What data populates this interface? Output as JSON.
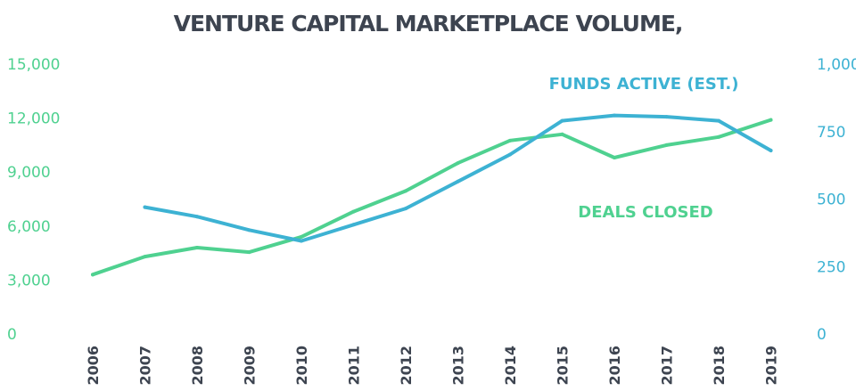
{
  "chart_data": {
    "type": "line",
    "title": "VENTURE CAPITAL MARKETPLACE VOLUME,",
    "x": [
      "2006",
      "2007",
      "2008",
      "2009",
      "2010",
      "2011",
      "2012",
      "2013",
      "2014",
      "2015",
      "2016",
      "2017",
      "2018",
      "2019"
    ],
    "y_left": {
      "ylim": [
        0,
        15000
      ],
      "ticks": [
        0,
        3000,
        6000,
        9000,
        12000,
        15000
      ],
      "tick_labels": [
        "0",
        "3,000",
        "6,000",
        "9,000",
        "12,000",
        "15,000"
      ]
    },
    "y_right": {
      "ylim": [
        0,
        1000
      ],
      "ticks": [
        0,
        250,
        500,
        750,
        1000
      ],
      "tick_labels": [
        "0",
        "250",
        "500",
        "750",
        "1,000"
      ]
    },
    "series": [
      {
        "name": "DEALS CLOSED",
        "axis": "left",
        "color": "#4fd190",
        "values": [
          3300,
          4300,
          4800,
          4550,
          5400,
          6800,
          7950,
          9500,
          10750,
          11100,
          9800,
          10500,
          10950,
          11900
        ]
      },
      {
        "name": "FUNDS ACTIVE (EST.)",
        "axis": "right",
        "color": "#3db2d3",
        "values": [
          null,
          470,
          435,
          385,
          345,
          405,
          465,
          565,
          665,
          790,
          810,
          805,
          790,
          680
        ]
      }
    ],
    "legend": "inline labels"
  }
}
